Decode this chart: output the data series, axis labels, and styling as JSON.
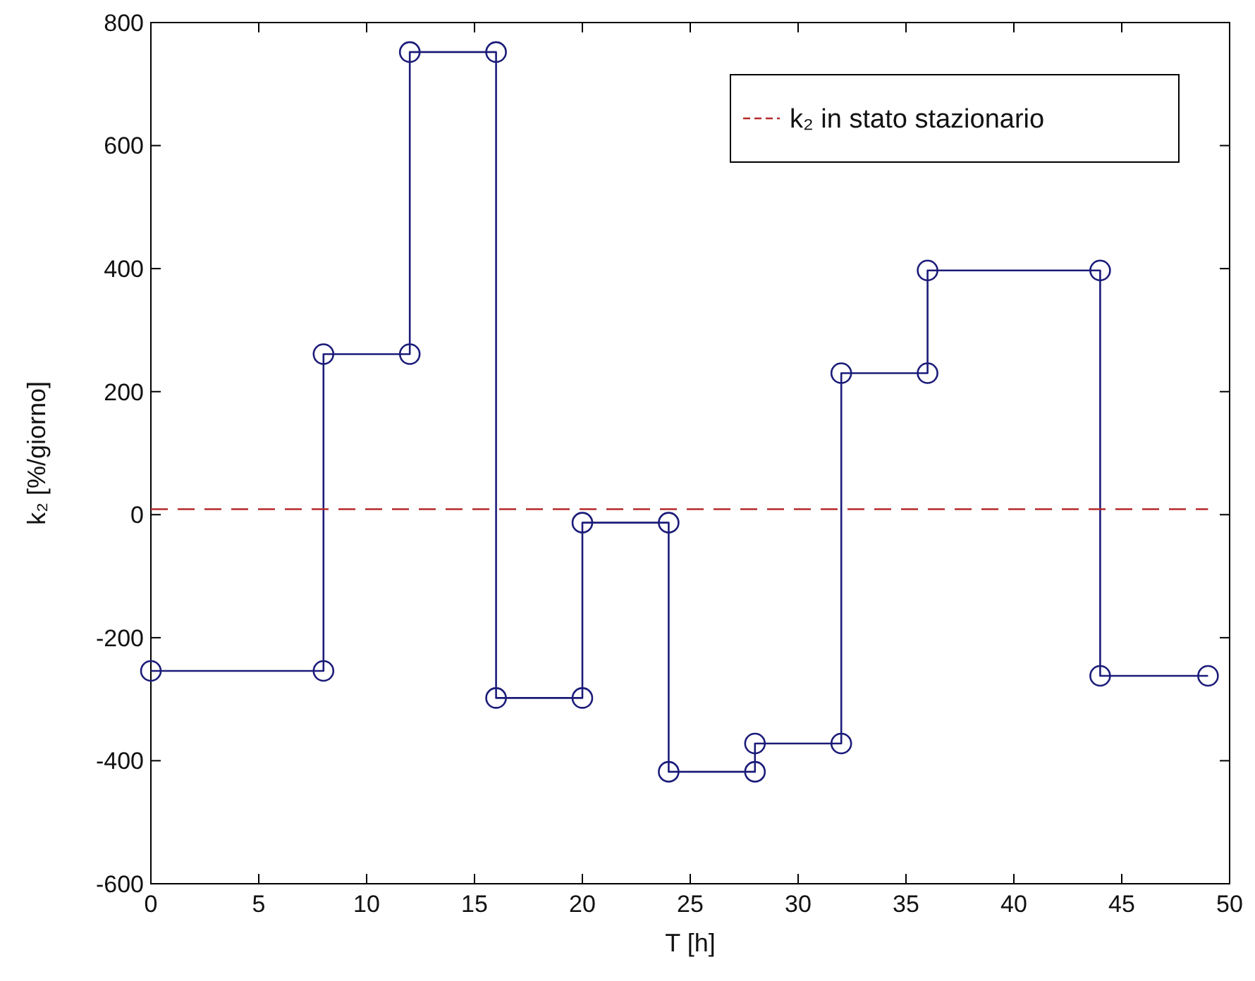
{
  "chart_data": {
    "type": "line",
    "xlabel": "T [h]",
    "ylabel": "k₂ [%/giorno]",
    "xlim": [
      0,
      50
    ],
    "xticks": [
      0,
      5,
      10,
      15,
      20,
      25,
      30,
      35,
      40,
      45,
      50
    ],
    "ylim": [
      -600,
      800
    ],
    "yticks": [
      -600,
      -400,
      -200,
      0,
      200,
      400,
      600,
      800
    ],
    "grid": false,
    "legend": "top right",
    "series": [
      {
        "color": "#1c1c7a",
        "marker": "circle",
        "line_style": "solid",
        "x": [
          0,
          8,
          8,
          12,
          12,
          16,
          16,
          20,
          20,
          24,
          24,
          28,
          28,
          32,
          32,
          36,
          36,
          44,
          44,
          49
        ],
        "values": [
          -254,
          -254,
          261,
          261,
          752,
          752,
          -298,
          -298,
          -13,
          -13,
          -418,
          -418,
          -372,
          -372,
          230,
          230,
          397,
          397,
          -262,
          -262
        ]
      },
      {
        "name": "k₂ in stato stazionario",
        "color": "#b52a2a",
        "marker": "none",
        "line_style": "dashed",
        "x": [
          0,
          49
        ],
        "values": [
          9,
          9
        ]
      }
    ]
  }
}
